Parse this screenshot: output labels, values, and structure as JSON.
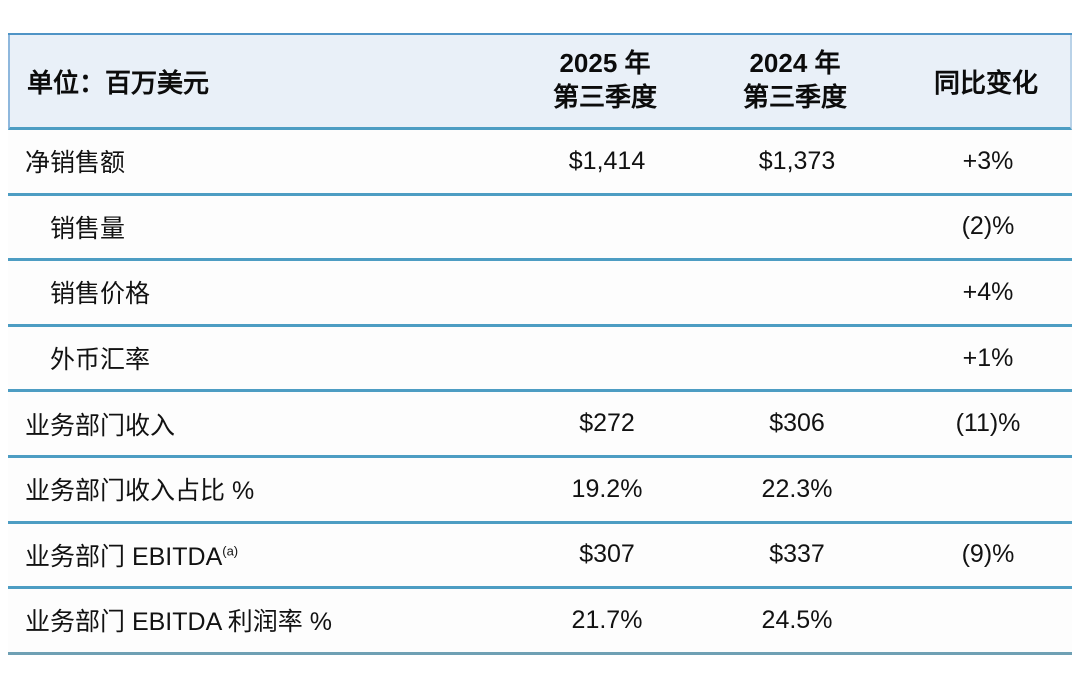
{
  "table": {
    "unit_label": "单位：百万美元",
    "columns": [
      {
        "id": "metric",
        "label": "单位：百万美元"
      },
      {
        "id": "q3_2025",
        "line1": "2025 年",
        "line2": "第三季度"
      },
      {
        "id": "q3_2024",
        "line1": "2024 年",
        "line2": "第三季度"
      },
      {
        "id": "yoy",
        "label": "同比变化"
      }
    ],
    "rows": [
      {
        "label": "净销售额",
        "indent": false,
        "q3_2025": "$1,414",
        "q3_2024": "$1,373",
        "yoy": "+3%"
      },
      {
        "label": "销售量",
        "indent": true,
        "q3_2025": "",
        "q3_2024": "",
        "yoy": "(2)%"
      },
      {
        "label": "销售价格",
        "indent": true,
        "q3_2025": "",
        "q3_2024": "",
        "yoy": "+4%"
      },
      {
        "label": "外币汇率",
        "indent": true,
        "q3_2025": "",
        "q3_2024": "",
        "yoy": "+1%"
      },
      {
        "label": "业务部门收入",
        "indent": false,
        "q3_2025": "$272",
        "q3_2024": "$306",
        "yoy": "(11)%"
      },
      {
        "label": "业务部门收入占比 %",
        "indent": false,
        "q3_2025": "19.2%",
        "q3_2024": "22.3%",
        "yoy": ""
      },
      {
        "label": "业务部门 EBITDA",
        "footnote": "(a)",
        "indent": false,
        "q3_2025": "$307",
        "q3_2024": "$337",
        "yoy": "(9)%"
      },
      {
        "label": "业务部门 EBITDA 利润率 %",
        "indent": false,
        "q3_2025": "21.7%",
        "q3_2024": "24.5%",
        "yoy": ""
      }
    ]
  },
  "colors": {
    "header_background": "#e9f0f8",
    "divider_blue": "#4d9dc3",
    "bottom_divider": "#6fa0b4",
    "text": "#121212",
    "page_background": "#ffffff"
  }
}
